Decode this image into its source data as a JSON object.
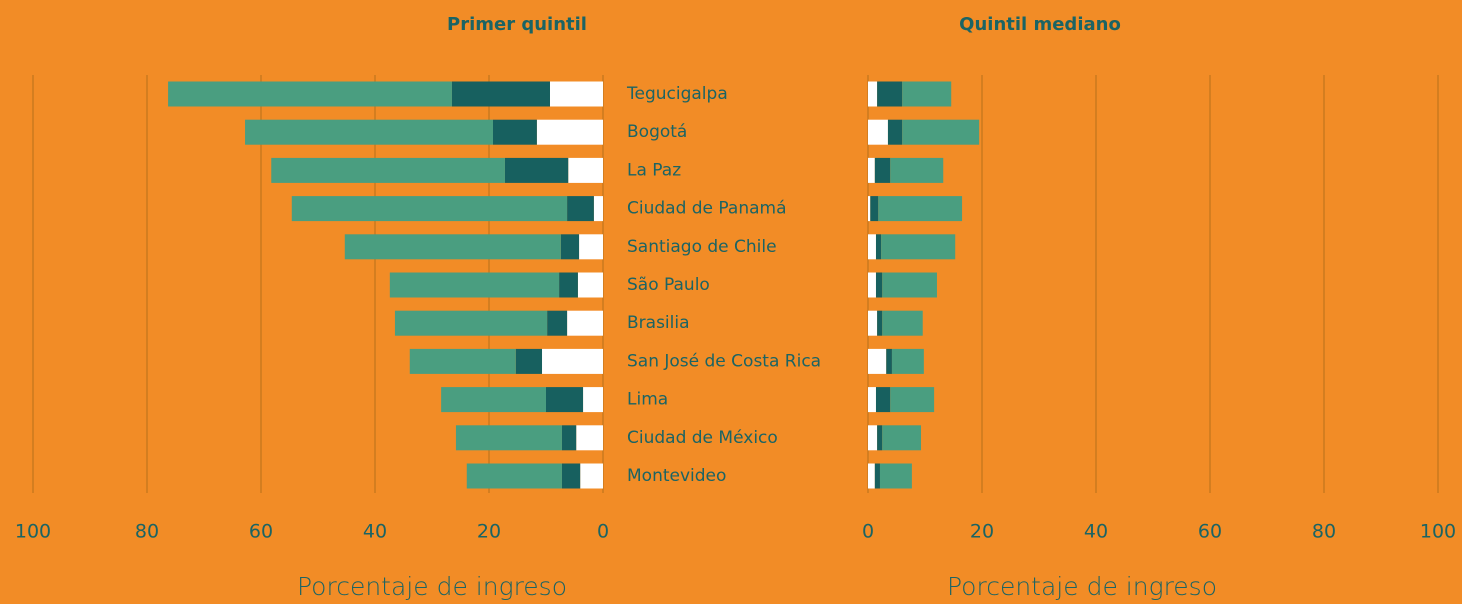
{
  "chart_data": [
    {
      "type": "bar",
      "orientation": "horizontal",
      "stacked": true,
      "title": "Primer quintil",
      "xlabel": "Porcentaje de ingreso",
      "categories": [
        "Tegucigalpa",
        "Bogotá",
        "La Paz",
        "Ciudad de Panamá",
        "Santiago de Chile",
        "São Paulo",
        "Brasilia",
        "San José de Costa Rica",
        "Lima",
        "Ciudad de México",
        "Montevideo"
      ],
      "series": [
        {
          "color": "#ffffff",
          "values": [
            9.3,
            11.6,
            6.1,
            1.6,
            4.2,
            4.4,
            6.3,
            10.7,
            3.5,
            4.7,
            4.0
          ]
        },
        {
          "color": "#17605f",
          "values": [
            17.2,
            7.7,
            11.1,
            4.7,
            3.2,
            3.3,
            3.5,
            4.6,
            6.5,
            2.5,
            3.2
          ]
        },
        {
          "color": "#4a9e80",
          "values": [
            49.8,
            43.5,
            41.0,
            48.3,
            37.9,
            29.7,
            26.7,
            18.6,
            18.4,
            18.6,
            16.7
          ]
        }
      ],
      "xlim": [
        100,
        0
      ],
      "xticks": [
        100,
        80,
        60,
        40,
        20,
        0
      ],
      "grid": true
    },
    {
      "type": "bar",
      "orientation": "horizontal",
      "stacked": true,
      "title": "Quintil mediano",
      "xlabel": "Porcentaje de ingreso",
      "series": [
        {
          "color": "#ffffff",
          "values": [
            1.6,
            3.5,
            1.2,
            0.4,
            1.4,
            1.4,
            1.6,
            3.2,
            1.4,
            1.6,
            1.2
          ]
        },
        {
          "color": "#17605f",
          "values": [
            4.4,
            2.5,
            2.7,
            1.4,
            0.9,
            1.1,
            0.9,
            1.0,
            2.5,
            0.9,
            0.9
          ]
        },
        {
          "color": "#4a9e80",
          "values": [
            8.6,
            13.5,
            9.3,
            14.7,
            13.0,
            9.6,
            7.1,
            5.6,
            7.7,
            6.8,
            5.6
          ]
        }
      ],
      "xlim": [
        0,
        100
      ],
      "xticks": [
        0,
        20,
        40,
        60,
        80,
        100
      ],
      "grid": true
    }
  ]
}
